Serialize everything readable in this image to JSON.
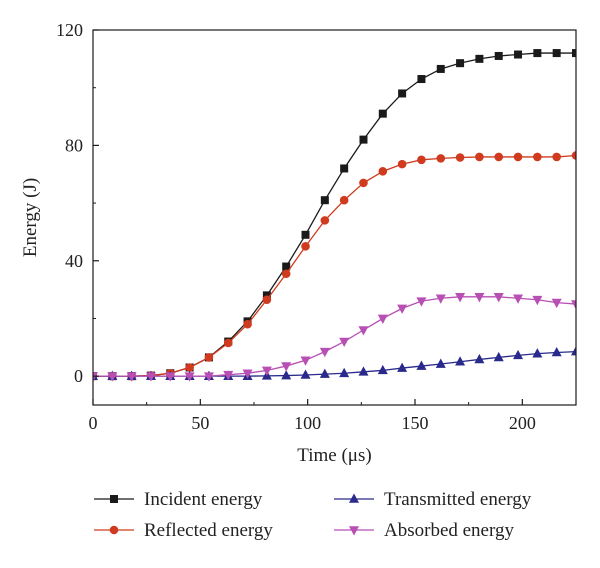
{
  "chart_data": {
    "type": "line",
    "title": "",
    "xlabel": "Time (μs)",
    "ylabel": "Energy (J)",
    "xlim": [
      0,
      225
    ],
    "ylim": [
      -10,
      120
    ],
    "xticks": [
      "0",
      "50",
      "100",
      "150",
      "200"
    ],
    "yticks": [
      "0",
      "40",
      "80",
      "120"
    ],
    "grid": false,
    "legend_position": "bottom",
    "x": [
      0,
      9,
      18,
      27,
      36,
      45,
      54,
      63,
      72,
      81,
      90,
      99,
      108,
      117,
      126,
      135,
      144,
      153,
      162,
      171,
      180,
      189,
      198,
      207,
      216,
      225
    ],
    "series": [
      {
        "name": "Incident energy",
        "color": "#1a1a1a",
        "marker": "square",
        "values": [
          0,
          0,
          0,
          0.2,
          1,
          3,
          6.5,
          12,
          19,
          28,
          38,
          49,
          61,
          72,
          82,
          91,
          98,
          103,
          106.5,
          108.5,
          110,
          111,
          111.5,
          112,
          112,
          112
        ]
      },
      {
        "name": "Reflected energy",
        "color": "#d03a1e",
        "marker": "circle",
        "values": [
          0,
          0,
          0,
          0.2,
          1,
          3,
          6.5,
          11.5,
          18,
          26.5,
          35.5,
          45,
          54,
          61,
          67,
          71,
          73.5,
          75,
          75.5,
          75.8,
          76,
          76,
          76,
          76,
          76,
          76.5
        ]
      },
      {
        "name": "Transmitted energy",
        "color": "#2a2a8c",
        "marker": "triangle-up",
        "values": [
          0,
          0,
          0,
          0,
          0,
          0,
          0,
          0,
          0,
          0.1,
          0.2,
          0.4,
          0.7,
          1,
          1.5,
          2,
          2.8,
          3.5,
          4.2,
          5,
          5.8,
          6.5,
          7.2,
          7.8,
          8.2,
          8.5
        ]
      },
      {
        "name": "Absorbed energy",
        "color": "#b84fb4",
        "marker": "triangle-down",
        "values": [
          0,
          0,
          0,
          0,
          0,
          0,
          0,
          0.5,
          1,
          2,
          3.5,
          5.5,
          8.5,
          12,
          16,
          20,
          23.5,
          26,
          27,
          27.5,
          27.5,
          27.5,
          27,
          26.5,
          25.5,
          25
        ]
      }
    ]
  }
}
